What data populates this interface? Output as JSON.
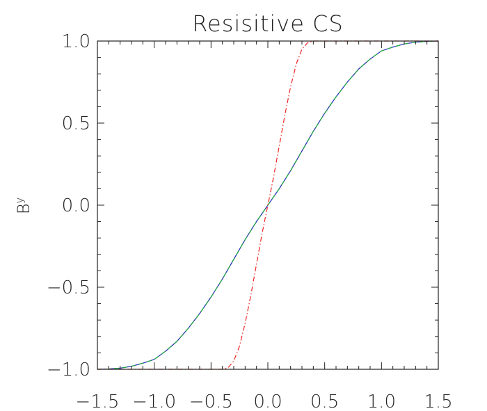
{
  "chart_data": {
    "type": "line",
    "title": "Resisitive CS",
    "xlabel": "",
    "ylabel": "B",
    "ylabel_superscript": "y",
    "xlim": [
      -1.5,
      1.5
    ],
    "ylim": [
      -1.0,
      1.0
    ],
    "xticks": [
      -1.5,
      -1.0,
      -0.5,
      0.0,
      0.5,
      1.0,
      1.5
    ],
    "xtick_labels": [
      "−1.5",
      "−1.0",
      "−0.5",
      "0.0",
      "0.5",
      "1.0",
      "1.5"
    ],
    "yticks": [
      -1.0,
      -0.5,
      0.0,
      0.5,
      1.0
    ],
    "ytick_labels": [
      "−1.0",
      "−0.5",
      "0.0",
      "0.5",
      "1.0"
    ],
    "grid": false,
    "legend": "none",
    "series": [
      {
        "color": "#3030c0",
        "style": "solid",
        "x": [
          -1.5,
          -1.4,
          -1.3,
          -1.2,
          -1.1,
          -1.0,
          -0.9,
          -0.8,
          -0.7,
          -0.6,
          -0.5,
          -0.4,
          -0.3,
          -0.2,
          -0.1,
          0.0,
          0.1,
          0.2,
          0.3,
          0.4,
          0.5,
          0.6,
          0.7,
          0.8,
          0.9,
          1.0,
          1.1,
          1.2,
          1.3,
          1.4,
          1.5
        ],
        "y": [
          -1.0,
          -0.998,
          -0.993,
          -0.982,
          -0.963,
          -0.94,
          -0.89,
          -0.83,
          -0.75,
          -0.66,
          -0.56,
          -0.45,
          -0.33,
          -0.21,
          -0.1,
          0.0,
          0.1,
          0.21,
          0.33,
          0.45,
          0.56,
          0.66,
          0.75,
          0.83,
          0.89,
          0.94,
          0.963,
          0.982,
          0.993,
          0.998,
          1.0
        ]
      },
      {
        "color": "#22aa44",
        "style": "dashed",
        "x": [
          -1.5,
          -1.4,
          -1.3,
          -1.2,
          -1.1,
          -1.0,
          -0.9,
          -0.8,
          -0.7,
          -0.6,
          -0.5,
          -0.4,
          -0.3,
          -0.2,
          -0.1,
          0.0,
          0.1,
          0.2,
          0.3,
          0.4,
          0.5,
          0.6,
          0.7,
          0.8,
          0.9,
          1.0,
          1.1,
          1.2,
          1.3,
          1.4,
          1.5
        ],
        "y": [
          -1.0,
          -0.998,
          -0.993,
          -0.982,
          -0.963,
          -0.94,
          -0.89,
          -0.83,
          -0.75,
          -0.66,
          -0.56,
          -0.45,
          -0.33,
          -0.21,
          -0.1,
          0.0,
          0.1,
          0.21,
          0.33,
          0.45,
          0.56,
          0.66,
          0.75,
          0.83,
          0.89,
          0.94,
          0.963,
          0.982,
          0.993,
          0.998,
          1.0
        ]
      },
      {
        "color": "#ee2222",
        "style": "dashdot",
        "x": [
          -1.5,
          -0.4,
          -0.35,
          -0.3,
          -0.25,
          -0.2,
          -0.15,
          -0.1,
          -0.05,
          0.0,
          0.05,
          0.1,
          0.15,
          0.2,
          0.25,
          0.3,
          0.35,
          0.4,
          1.5
        ],
        "y": [
          -1.0,
          -1.0,
          -0.99,
          -0.95,
          -0.86,
          -0.72,
          -0.55,
          -0.36,
          -0.17,
          0.0,
          0.17,
          0.36,
          0.55,
          0.72,
          0.86,
          0.95,
          0.99,
          1.0,
          1.0
        ]
      }
    ]
  }
}
